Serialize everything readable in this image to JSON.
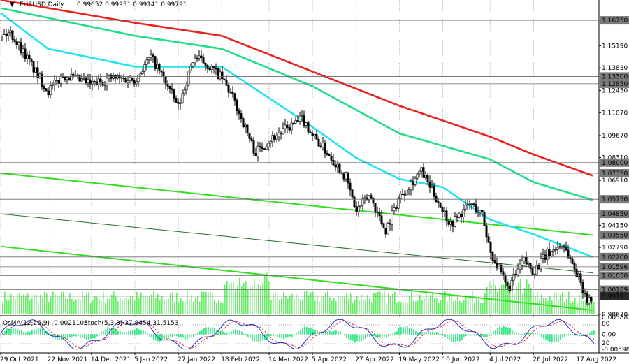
{
  "header": {
    "symbol_label": "EURUSD,Daily",
    "ohlc": "0.99652 0.99951 0.99141 0.99791"
  },
  "oscillator_label": {
    "osma": "OsMA(12,26,9) -0.0021105",
    "stoch": "Stoch(5,3,3) 37.8454 31.5153"
  },
  "colors": {
    "ma_red": "#e8211d",
    "ma_green": "#22dd88",
    "ma_cyan": "#22e3f0",
    "channel": "#33dd22",
    "channel_mid": "#1f6f26",
    "histogram": "#33ee88",
    "volume": "#66ee66",
    "stoch_blue": "#2233cc",
    "stoch_red": "#e03030"
  },
  "chart_data": [
    {
      "type": "candlestick",
      "symbol": "EURUSD",
      "timeframe": "Daily",
      "price_axis": [
        "1.16750",
        "1.15190",
        "1.13830",
        "1.13300",
        "1.12850",
        "1.12430",
        "1.11070",
        "1.09670",
        "1.08310",
        "1.08000",
        "1.07350",
        "1.06910",
        "1.05750",
        "1.04850",
        "1.04150",
        "1.03550",
        "1.02790",
        "1.02200",
        "1.01596",
        "1.01050",
        "1.00189",
        "0.99791",
        "0.98670"
      ],
      "highlighted_levels": [
        "1.16750",
        "1.13300",
        "1.12850",
        "1.08000",
        "1.07350",
        "1.05750",
        "1.04850",
        "1.03550",
        "1.02200",
        "1.01596",
        "1.01050",
        "1.00189",
        "0.99791"
      ],
      "x_axis": [
        "29 Oct 2021",
        "22 Nov 2021",
        "14 Dec 2021",
        "5 Jan 2022",
        "27 Jan 2022",
        "18 Feb 2022",
        "14 Mar 2022",
        "5 Apr 2022",
        "27 Apr 2022",
        "19 May 2022",
        "10 Jun 2022",
        "4 Jul 2022",
        "26 Jul 2022",
        "17 Aug 2022"
      ],
      "ylim": [
        0.9867,
        1.18
      ],
      "close_path": [
        {
          "x": "29 Oct 2021",
          "y": 1.158
        },
        {
          "x": "3 Nov 2021",
          "y": 1.16
        },
        {
          "x": "10 Nov 2021",
          "y": 1.147
        },
        {
          "x": "15 Nov 2021",
          "y": 1.137
        },
        {
          "x": "22 Nov 2021",
          "y": 1.124
        },
        {
          "x": "30 Nov 2021",
          "y": 1.134
        },
        {
          "x": "14 Dec 2021",
          "y": 1.128
        },
        {
          "x": "24 Dec 2021",
          "y": 1.132
        },
        {
          "x": "5 Jan 2022",
          "y": 1.131
        },
        {
          "x": "13 Jan 2022",
          "y": 1.145
        },
        {
          "x": "20 Jan 2022",
          "y": 1.131
        },
        {
          "x": "27 Jan 2022",
          "y": 1.114
        },
        {
          "x": "4 Feb 2022",
          "y": 1.145
        },
        {
          "x": "10 Feb 2022",
          "y": 1.141
        },
        {
          "x": "18 Feb 2022",
          "y": 1.132
        },
        {
          "x": "24 Feb 2022",
          "y": 1.119
        },
        {
          "x": "7 Mar 2022",
          "y": 1.086
        },
        {
          "x": "14 Mar 2022",
          "y": 1.094
        },
        {
          "x": "23 Mar 2022",
          "y": 1.101
        },
        {
          "x": "31 Mar 2022",
          "y": 1.107
        },
        {
          "x": "5 Apr 2022",
          "y": 1.097
        },
        {
          "x": "14 Apr 2022",
          "y": 1.084
        },
        {
          "x": "22 Apr 2022",
          "y": 1.071
        },
        {
          "x": "27 Apr 2022",
          "y": 1.05
        },
        {
          "x": "4 May 2022",
          "y": 1.06
        },
        {
          "x": "12 May 2022",
          "y": 1.038
        },
        {
          "x": "19 May 2022",
          "y": 1.059
        },
        {
          "x": "30 May 2022",
          "y": 1.075
        },
        {
          "x": "10 Jun 2022",
          "y": 1.051
        },
        {
          "x": "14 Jun 2022",
          "y": 1.042
        },
        {
          "x": "24 Jun 2022",
          "y": 1.055
        },
        {
          "x": "30 Jun 2022",
          "y": 1.048
        },
        {
          "x": "4 Jul 2022",
          "y": 1.026
        },
        {
          "x": "13 Jul 2022",
          "y": 1.002
        },
        {
          "x": "21 Jul 2022",
          "y": 1.02
        },
        {
          "x": "26 Jul 2022",
          "y": 1.013
        },
        {
          "x": "2 Aug 2022",
          "y": 1.024
        },
        {
          "x": "10 Aug 2022",
          "y": 1.03
        },
        {
          "x": "17 Aug 2022",
          "y": 1.012
        },
        {
          "x": "23 Aug 2022",
          "y": 0.994
        },
        {
          "x": "25 Aug 2022",
          "y": 0.998
        }
      ],
      "series": [
        {
          "id": "ma-red",
          "points": [
            [
              "29 Oct 2021",
              1.18
            ],
            [
              "5 Jan 2022",
              1.166
            ],
            [
              "18 Feb 2022",
              1.158
            ],
            [
              "5 Apr 2022",
              1.136
            ],
            [
              "19 May 2022",
              1.115
            ],
            [
              "4 Jul 2022",
              1.096
            ],
            [
              "26 Jul 2022",
              1.085
            ],
            [
              "25 Aug 2022",
              1.072
            ]
          ]
        },
        {
          "id": "ma-green",
          "points": [
            [
              "29 Oct 2021",
              1.175
            ],
            [
              "5 Jan 2022",
              1.158
            ],
            [
              "18 Feb 2022",
              1.15
            ],
            [
              "5 Apr 2022",
              1.127
            ],
            [
              "19 May 2022",
              1.098
            ],
            [
              "4 Jul 2022",
              1.082
            ],
            [
              "26 Jul 2022",
              1.068
            ],
            [
              "25 Aug 2022",
              1.057
            ]
          ]
        },
        {
          "id": "ma-cyan",
          "points": [
            [
              "29 Oct 2021",
              1.172
            ],
            [
              "22 Nov 2021",
              1.15
            ],
            [
              "5 Jan 2022",
              1.139
            ],
            [
              "18 Feb 2022",
              1.139
            ],
            [
              "5 Apr 2022",
              1.102
            ],
            [
              "27 Apr 2022",
              1.083
            ],
            [
              "19 May 2022",
              1.07
            ],
            [
              "10 Jun 2022",
              1.065
            ],
            [
              "4 Jul 2022",
              1.045
            ],
            [
              "26 Jul 2022",
              1.036
            ],
            [
              "25 Aug 2022",
              1.022
            ]
          ]
        }
      ]
    },
    {
      "type": "bar",
      "title": "",
      "series": [
        {
          "name": "OsMA(12,26,9)",
          "last_value": -0.0021105
        },
        {
          "name": "Stoch(5,3,3)",
          "main": 37.8454,
          "signal": 31.5153
        }
      ],
      "y_axis": [
        "0.0058815",
        "80",
        "0.00",
        "20",
        "-0.005985"
      ],
      "ylim": [
        -0.005985,
        0.0058815
      ]
    }
  ]
}
